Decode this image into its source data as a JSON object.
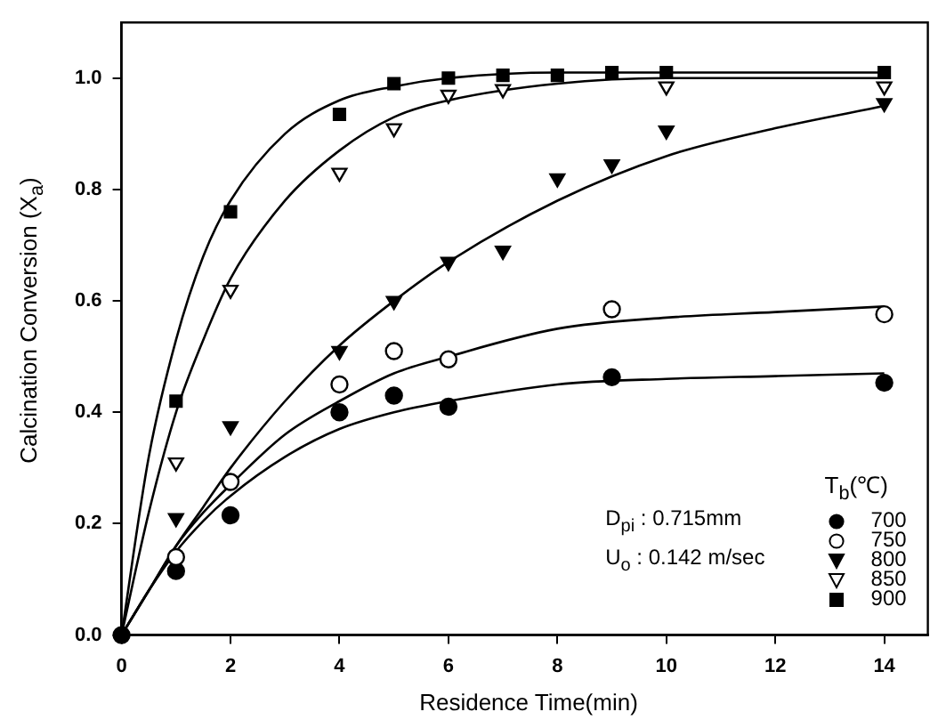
{
  "chart_data": {
    "type": "scatter",
    "xlabel": "Residence Time(min)",
    "ylabel": "Calcination Conversion (X$_{a}$)",
    "legend_title": "T$_{b}$(℃)",
    "legend": "bottom right",
    "grid": false,
    "xlim": [
      0,
      14.8
    ],
    "ylim": [
      0,
      1.1
    ],
    "xticks": [
      0,
      2,
      4,
      6,
      8,
      10,
      12,
      14
    ],
    "yticks": [
      {
        "value": 0,
        "label": "0.0"
      },
      {
        "value": 0.2,
        "label": "0.2"
      },
      {
        "value": 0.4,
        "label": "0.4"
      },
      {
        "value": 0.6,
        "label": "0.6"
      },
      {
        "value": 0.8,
        "label": "0.8"
      },
      {
        "value": 1,
        "label": "1.0"
      }
    ],
    "annotations": [
      "D$_{pi}$ : 0.715mm",
      "U$_{o}$ : 0.142 m/sec"
    ],
    "series": [
      {
        "name": "700",
        "color": "#000000",
        "marker": "circle",
        "x": [
          0,
          1,
          2,
          4,
          5,
          6,
          9,
          14
        ],
        "values": [
          0,
          0.115,
          0.215,
          0.4,
          0.43,
          0.41,
          0.463,
          0.453
        ]
      },
      {
        "name": "750",
        "color": "#ffffff",
        "marker": "circle",
        "x": [
          1,
          2,
          4,
          5,
          6,
          9,
          14
        ],
        "values": [
          0.14,
          0.275,
          0.45,
          0.51,
          0.495,
          0.585,
          0.576
        ]
      },
      {
        "name": "800",
        "color": "#000000",
        "marker": "triangle",
        "x": [
          1,
          2,
          4,
          5,
          6,
          7,
          8,
          9,
          10,
          14
        ],
        "values": [
          0.21,
          0.375,
          0.51,
          0.6,
          0.67,
          0.69,
          0.82,
          0.845,
          0.906,
          0.955
        ]
      },
      {
        "name": "850",
        "color": "#ffffff",
        "marker": "triangle",
        "x": [
          1,
          2,
          4,
          5,
          6,
          7,
          10,
          14
        ],
        "values": [
          0.31,
          0.62,
          0.83,
          0.91,
          0.97,
          0.98,
          0.985,
          0.985
        ]
      },
      {
        "name": "900",
        "color": "#000000",
        "marker": "square",
        "x": [
          1,
          2,
          4,
          5,
          6,
          7,
          8,
          9,
          10,
          14
        ],
        "values": [
          0.42,
          0.76,
          0.935,
          0.99,
          1.0,
          1.005,
          1.005,
          1.01,
          1.01,
          1.01
        ]
      },
      {
        "type": "line",
        "color": "#000000",
        "marker": "none",
        "x": [
          0,
          0.5,
          1,
          1.5,
          2,
          3,
          4,
          5,
          6,
          8,
          10,
          12,
          14
        ],
        "values": [
          0,
          0.08,
          0.15,
          0.205,
          0.25,
          0.32,
          0.37,
          0.4,
          0.42,
          0.45,
          0.46,
          0.465,
          0.47
        ]
      },
      {
        "type": "line",
        "color": "#000000",
        "marker": "none",
        "x": [
          0,
          0.5,
          1,
          1.5,
          2,
          3,
          4,
          5,
          6,
          8,
          10,
          12,
          14
        ],
        "values": [
          0,
          0.08,
          0.16,
          0.22,
          0.27,
          0.36,
          0.42,
          0.47,
          0.5,
          0.55,
          0.57,
          0.58,
          0.59
        ]
      },
      {
        "type": "line",
        "color": "#000000",
        "marker": "none",
        "x": [
          0,
          0.5,
          1,
          1.5,
          2,
          3,
          4,
          5,
          6,
          8,
          10,
          12,
          14
        ],
        "values": [
          0,
          0.08,
          0.16,
          0.23,
          0.3,
          0.42,
          0.52,
          0.6,
          0.67,
          0.78,
          0.86,
          0.91,
          0.95
        ]
      },
      {
        "type": "line",
        "color": "#000000",
        "marker": "none",
        "x": [
          0,
          0.5,
          1,
          1.5,
          2,
          3,
          4,
          5,
          6,
          8,
          10,
          12,
          14
        ],
        "values": [
          0,
          0.22,
          0.4,
          0.53,
          0.64,
          0.78,
          0.87,
          0.93,
          0.96,
          0.99,
          1.0,
          1.0,
          1.0
        ]
      },
      {
        "type": "line",
        "color": "#000000",
        "marker": "none",
        "x": [
          0,
          0.5,
          1,
          1.5,
          2,
          3,
          4,
          5,
          6,
          8,
          10,
          12,
          14
        ],
        "values": [
          0,
          0.32,
          0.53,
          0.68,
          0.78,
          0.9,
          0.96,
          0.985,
          1.0,
          1.01,
          1.01,
          1.01,
          1.01
        ]
      }
    ]
  }
}
